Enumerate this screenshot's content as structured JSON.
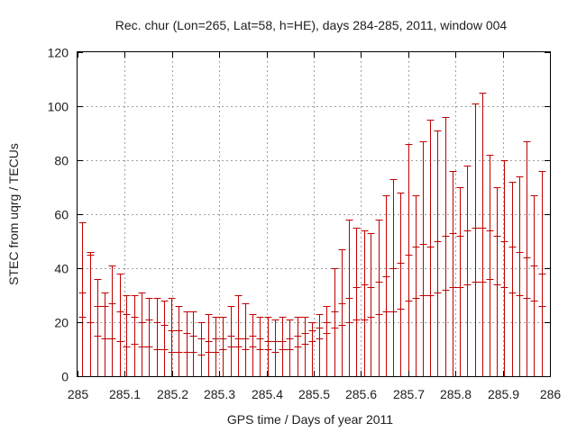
{
  "chart_data": {
    "type": "errorbar",
    "title": "Rec. chur (Lon=265, Lat=58, h=HE), days 284-285, 2011, window 004",
    "xlabel": "GPS time / Days of year 2011",
    "ylabel": "STEC from uqrg / TECUs",
    "xlim": [
      285,
      286
    ],
    "ylim": [
      0,
      120
    ],
    "x_ticks": [
      285,
      285.1,
      285.2,
      285.3,
      285.4,
      285.5,
      285.6,
      285.7,
      285.8,
      285.9,
      286
    ],
    "x_tick_labels": [
      "285",
      "285.1",
      "285.2",
      "285.3",
      "285.4",
      "285.5",
      "285.6",
      "285.7",
      "285.8",
      "285.9",
      "286"
    ],
    "y_ticks": [
      0,
      20,
      40,
      60,
      80,
      100,
      120
    ],
    "y_tick_labels": [
      "0",
      "20",
      "40",
      "60",
      "80",
      "100",
      "120"
    ],
    "grid": true,
    "series_color": "#c00000",
    "notes": "Each sample is a vertical error bar drawn from 0 up to its upper value, with short cap marks at the lower, central and upper values.",
    "series": [
      {
        "name": "STEC",
        "x": [
          285.01,
          285.026,
          285.042,
          285.057,
          285.073,
          285.089,
          285.104,
          285.12,
          285.136,
          285.151,
          285.167,
          285.183,
          285.198,
          285.214,
          285.23,
          285.245,
          285.261,
          285.277,
          285.292,
          285.308,
          285.324,
          285.339,
          285.355,
          285.371,
          285.386,
          285.402,
          285.418,
          285.433,
          285.449,
          285.465,
          285.48,
          285.496,
          285.512,
          285.527,
          285.543,
          285.559,
          285.574,
          285.59,
          285.606,
          285.621,
          285.637,
          285.653,
          285.668,
          285.684,
          285.7,
          285.715,
          285.731,
          285.747,
          285.762,
          285.778,
          285.794,
          285.809,
          285.825,
          285.841,
          285.856,
          285.872,
          285.888,
          285.903,
          285.919,
          285.935,
          285.95,
          285.966,
          285.982
        ],
        "lower": [
          22,
          20,
          15,
          14,
          14,
          13,
          11,
          12,
          11,
          11,
          10,
          10,
          9,
          9,
          9,
          9,
          8,
          9,
          9,
          10,
          11,
          11,
          10,
          11,
          10,
          10,
          9,
          10,
          10,
          11,
          12,
          13,
          14,
          16,
          18,
          19,
          20,
          21,
          21,
          22,
          23,
          24,
          24,
          25,
          28,
          29,
          30,
          30,
          31,
          32,
          33,
          33,
          34,
          35,
          35,
          36,
          34,
          33,
          31,
          30,
          29,
          28,
          26
        ],
        "value": [
          31,
          45,
          26,
          26,
          27,
          24,
          23,
          22,
          20,
          21,
          20,
          19,
          17,
          17,
          16,
          15,
          14,
          13,
          14,
          14,
          15,
          14,
          14,
          15,
          14,
          13,
          13,
          13,
          14,
          15,
          16,
          17,
          18,
          20,
          24,
          27,
          29,
          33,
          34,
          33,
          35,
          37,
          40,
          42,
          45,
          48,
          49,
          48,
          50,
          52,
          53,
          52,
          54,
          55,
          55,
          54,
          52,
          50,
          48,
          46,
          44,
          41,
          38
        ],
        "upper": [
          57,
          46,
          36,
          31,
          41,
          38,
          30,
          30,
          31,
          29,
          29,
          28,
          29,
          26,
          24,
          24,
          20,
          23,
          22,
          22,
          26,
          30,
          27,
          23,
          22,
          22,
          21,
          22,
          21,
          22,
          22,
          20,
          23,
          26,
          40,
          47,
          58,
          55,
          54,
          53,
          58,
          67,
          73,
          68,
          86,
          67,
          87,
          95,
          91,
          96,
          76,
          70,
          78,
          101,
          105,
          82,
          70,
          80,
          72,
          74,
          87,
          67,
          76
        ]
      }
    ]
  }
}
